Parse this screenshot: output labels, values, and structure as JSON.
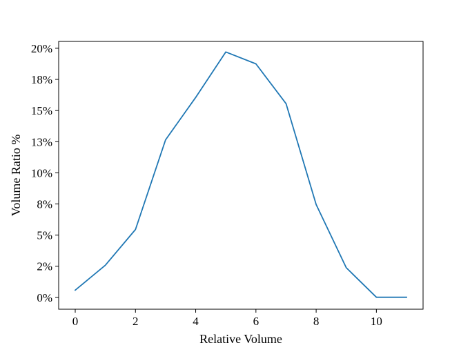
{
  "chart_data": {
    "type": "line",
    "title": "",
    "xlabel": "Relative Volume",
    "ylabel": "Volume Ratio %",
    "xlim": [
      -0.55,
      11.55
    ],
    "ylim": [
      -0.0095,
      0.2055
    ],
    "xticks": [
      0,
      2,
      4,
      6,
      8,
      10
    ],
    "xtick_labels": [
      "0",
      "2",
      "4",
      "6",
      "8",
      "10"
    ],
    "yticks": [
      0,
      0.025,
      0.05,
      0.075,
      0.1,
      0.125,
      0.15,
      0.175,
      0.2
    ],
    "ytick_labels": [
      "0%",
      "2%",
      "5%",
      "8%",
      "10%",
      "13%",
      "15%",
      "18%",
      "20%"
    ],
    "grid": false,
    "legend": false,
    "series": [
      {
        "color": "#1f77b4",
        "x": [
          0,
          1,
          2,
          3,
          4,
          5,
          6,
          7,
          8,
          9,
          10,
          11
        ],
        "y": [
          0.0058,
          0.0258,
          0.0545,
          0.1265,
          0.1605,
          0.197,
          0.1875,
          0.1555,
          0.0745,
          0.0238,
          0.0001,
          0.0001
        ]
      }
    ]
  }
}
